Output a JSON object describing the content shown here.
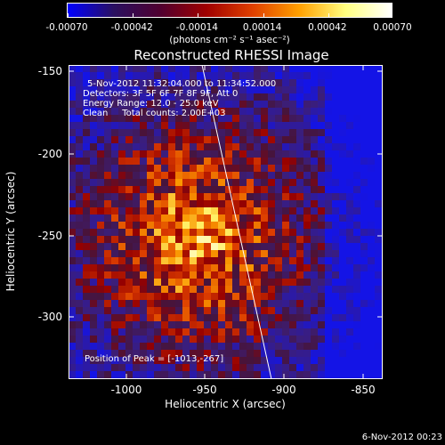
{
  "colorbar": {
    "ticks": [
      "-0.00070",
      "-0.00042",
      "-0.00014",
      "0.00014",
      "0.00042",
      "0.00070"
    ],
    "units": "(photons cm⁻² s⁻¹ asec⁻²)",
    "colors": [
      "#0000ff",
      "#2a1060",
      "#500030",
      "#a00000",
      "#e04000",
      "#ffa000",
      "#ffff80",
      "#ffffff"
    ]
  },
  "title": "Reconstructed RHESSI Image",
  "annotations": {
    "time": "5-Nov-2012 11:32:04.000 to 11:34:52.000",
    "detectors": "Detectors: 3F 5F 6F 7F 8F 9F, Att 0",
    "energy": "Energy Range: 12.0 - 25.0 keV",
    "clean": "Clean     Total counts: 2.00E+03",
    "peak": "Position of Peak = [-1013,-267]"
  },
  "axes": {
    "xlabel": "Heliocentric X (arcsec)",
    "ylabel": "Heliocentric Y (arcsec)",
    "x_ticks": [
      "-1000",
      "-950",
      "-900",
      "-850"
    ],
    "y_ticks": [
      "-150",
      "-200",
      "-250",
      "-300"
    ],
    "x_range": [
      -1035,
      -833
    ],
    "y_range": [
      -338,
      -148
    ]
  },
  "footer": "6-Nov-2012 00:23"
}
